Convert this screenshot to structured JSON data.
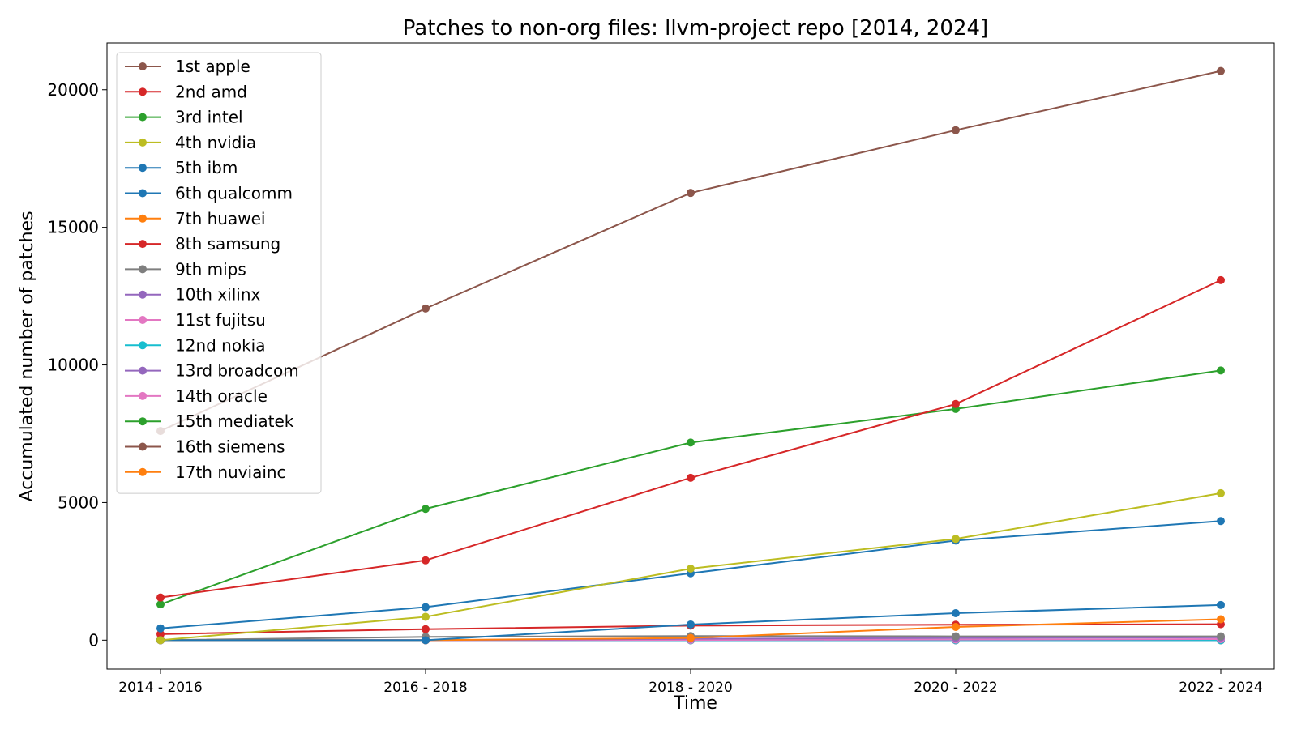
{
  "chart_data": {
    "type": "line",
    "title": "Patches to non-org files: llvm-project repo [2014, 2024]",
    "xlabel": "Time",
    "ylabel": "Accumulated number of patches",
    "categories": [
      "2014 - 2016",
      "2016 - 2018",
      "2018 - 2020",
      "2020 - 2022",
      "2022 - 2024"
    ],
    "ylim": [
      -1050,
      21700
    ],
    "yticks": [
      0,
      5000,
      10000,
      15000,
      20000
    ],
    "grid": false,
    "legend_position": "upper-left",
    "series": [
      {
        "name": " 1st apple",
        "color": "#8c564b",
        "values": [
          7600,
          12050,
          16250,
          18530,
          20680
        ]
      },
      {
        "name": " 2nd amd",
        "color": "#d62728",
        "values": [
          1550,
          2900,
          5900,
          8580,
          13080
        ]
      },
      {
        "name": " 3rd intel",
        "color": "#2ca02c",
        "values": [
          1300,
          4770,
          7180,
          8400,
          9800
        ]
      },
      {
        "name": " 4th nvidia",
        "color": "#bcbd22",
        "values": [
          0,
          850,
          2600,
          3680,
          5340
        ]
      },
      {
        "name": " 5th ibm",
        "color": "#1f77b4",
        "values": [
          430,
          1200,
          2430,
          3620,
          4330
        ]
      },
      {
        "name": " 6th qualcomm",
        "color": "#1f77b4",
        "values": [
          0,
          0,
          570,
          980,
          1280
        ]
      },
      {
        "name": " 7th huawei",
        "color": "#ff7f0e",
        "values": [
          0,
          0,
          80,
          480,
          760
        ]
      },
      {
        "name": " 8th samsung",
        "color": "#d62728",
        "values": [
          220,
          400,
          530,
          560,
          580
        ]
      },
      {
        "name": " 9th mips",
        "color": "#7f7f7f",
        "values": [
          0,
          120,
          150,
          140,
          140
        ]
      },
      {
        "name": "10th xilinx",
        "color": "#9467bd",
        "values": [
          0,
          0,
          50,
          80,
          100
        ]
      },
      {
        "name": "11st fujitsu",
        "color": "#e377c2",
        "values": [
          0,
          0,
          10,
          20,
          40
        ]
      },
      {
        "name": "12nd nokia",
        "color": "#17becf",
        "values": [
          0,
          0,
          0,
          0,
          0
        ]
      },
      {
        "name": "13rd broadcom",
        "color": "#9467bd",
        "values": [
          0,
          0,
          0,
          0,
          0
        ]
      },
      {
        "name": "14th oracle",
        "color": "#e377c2",
        "values": [
          0,
          0,
          0,
          0,
          0
        ]
      },
      {
        "name": "15th mediatek",
        "color": "#2ca02c",
        "values": [
          0,
          0,
          0,
          0,
          0
        ]
      },
      {
        "name": "16th siemens",
        "color": "#8c564b",
        "values": [
          0,
          0,
          0,
          0,
          0
        ]
      },
      {
        "name": "17th nuviainc",
        "color": "#ff7f0e",
        "values": [
          0,
          0,
          0,
          0,
          0
        ]
      }
    ]
  }
}
